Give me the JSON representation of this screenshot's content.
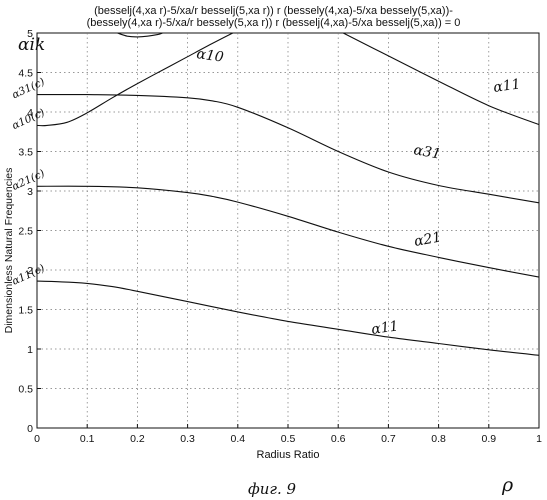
{
  "chart_data": {
    "type": "line",
    "title_lines": [
      "(besselj(4,xa r)-5/xa/r besselj(5,xa r)) r (bessely(4,xa)-5/xa bessely(5,xa))-",
      "(bessely(4,xa r)-5/xa/r bessely(5,xa r)) r (besselj(4,xa)-5/xa besselj(5,xa)) = 0"
    ],
    "xlabel": "Radius Ratio",
    "ylabel": "Dimensionless Natural Frequencies",
    "xlim": [
      0,
      1
    ],
    "ylim": [
      0,
      5
    ],
    "xticks": [
      "0",
      "0.1",
      "0.2",
      "0.3",
      "0.4",
      "0.5",
      "0.6",
      "0.7",
      "0.8",
      "0.9",
      "1"
    ],
    "yticks": [
      "0",
      "0.5",
      "1",
      "1.5",
      "2",
      "2.5",
      "3",
      "3.5",
      "4",
      "4.5",
      "5"
    ],
    "grid": true,
    "series": [
      {
        "name": "α11",
        "x": [
          0,
          0.05,
          0.1,
          0.15,
          0.2,
          0.3,
          0.4,
          0.5,
          0.6,
          0.7,
          0.8,
          0.9,
          1.0
        ],
        "y": [
          1.86,
          1.85,
          1.83,
          1.79,
          1.73,
          1.6,
          1.47,
          1.35,
          1.25,
          1.15,
          1.07,
          0.99,
          0.92
        ]
      },
      {
        "name": "α21",
        "x": [
          0,
          0.1,
          0.2,
          0.3,
          0.35,
          0.4,
          0.5,
          0.6,
          0.7,
          0.8,
          0.9,
          1.0
        ],
        "y": [
          3.06,
          3.06,
          3.04,
          2.98,
          2.93,
          2.86,
          2.68,
          2.48,
          2.3,
          2.16,
          2.03,
          1.91
        ]
      },
      {
        "name": "α31",
        "x": [
          0,
          0.1,
          0.2,
          0.3,
          0.35,
          0.4,
          0.5,
          0.6,
          0.7,
          0.8,
          0.9,
          1.0
        ],
        "y": [
          4.22,
          4.22,
          4.21,
          4.18,
          4.14,
          4.06,
          3.8,
          3.5,
          3.24,
          3.07,
          2.96,
          2.85
        ]
      },
      {
        "name": "α10",
        "x": [
          0,
          0.02,
          0.06,
          0.1,
          0.15,
          0.2,
          0.25,
          0.3,
          0.35,
          0.39
        ],
        "y": [
          3.83,
          3.83,
          3.87,
          3.99,
          4.18,
          4.36,
          4.53,
          4.7,
          4.87,
          5.0
        ]
      },
      {
        "name": "α11",
        "x": [
          0.61,
          0.7,
          0.8,
          0.9,
          1.0
        ],
        "y": [
          5.0,
          4.71,
          4.39,
          4.08,
          3.84
        ]
      },
      {
        "name": "",
        "x": [
          0.16,
          0.18,
          0.2,
          0.22,
          0.24,
          0.25
        ],
        "y": [
          5.0,
          4.96,
          4.95,
          4.96,
          4.98,
          5.0
        ]
      }
    ],
    "annotations": {
      "axis_symbol": "αik",
      "x_symbol": "ρ",
      "caption": "фиг. 9",
      "y_markers": [
        {
          "label": "α31(c)",
          "y": 4.22
        },
        {
          "label": "α10(c)",
          "y": 3.83
        },
        {
          "label": "α21(c)",
          "y": 3.06
        },
        {
          "label": "α11(c)",
          "y": 1.86
        }
      ]
    }
  }
}
